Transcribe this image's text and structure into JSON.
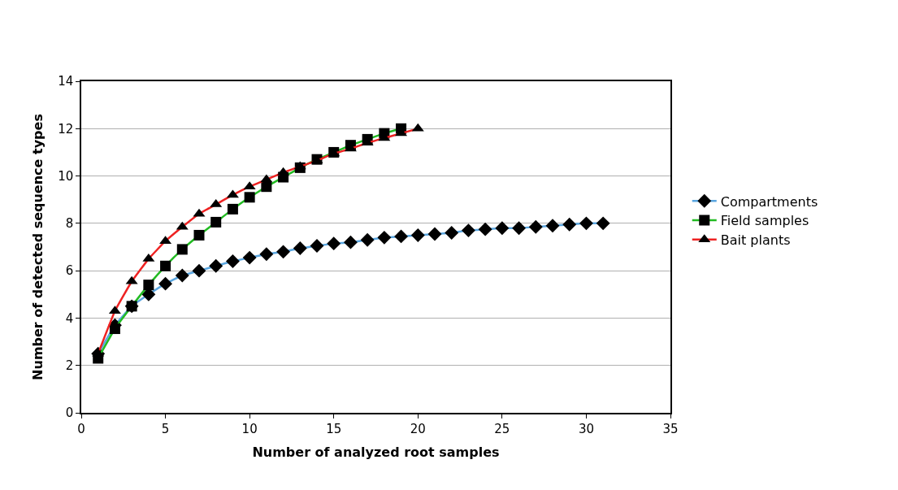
{
  "chart_data": {
    "type": "line",
    "xlabel": "Number of analyzed root samples",
    "ylabel": "Number of detected sequence types",
    "xlim": [
      0,
      35
    ],
    "xticks": [
      0,
      5,
      10,
      15,
      20,
      25,
      30,
      35
    ],
    "ylim": [
      0,
      14
    ],
    "yticks": [
      0,
      2,
      4,
      6,
      8,
      10,
      12,
      14
    ],
    "grid": "y",
    "legend": "right",
    "series": [
      {
        "name": "Compartments",
        "color": "#5aa6e0",
        "marker": "diamond",
        "x": [
          1,
          2,
          3,
          4,
          5,
          6,
          7,
          8,
          9,
          10,
          11,
          12,
          13,
          14,
          15,
          16,
          17,
          18,
          19,
          20,
          21,
          22,
          23,
          24,
          25,
          26,
          27,
          28,
          29,
          30,
          31
        ],
        "values": [
          2.5,
          3.7,
          4.5,
          5.0,
          5.45,
          5.8,
          6.0,
          6.2,
          6.4,
          6.55,
          6.7,
          6.8,
          6.95,
          7.05,
          7.15,
          7.2,
          7.3,
          7.4,
          7.45,
          7.5,
          7.55,
          7.6,
          7.7,
          7.75,
          7.8,
          7.8,
          7.85,
          7.9,
          7.95,
          8.0,
          8.0
        ]
      },
      {
        "name": "Field samples",
        "color": "#22bb22",
        "marker": "square",
        "x": [
          1,
          2,
          3,
          4,
          5,
          6,
          7,
          8,
          9,
          10,
          11,
          12,
          13,
          14,
          15,
          16,
          17,
          18,
          19
        ],
        "values": [
          2.3,
          3.55,
          4.5,
          5.4,
          6.2,
          6.9,
          7.5,
          8.05,
          8.6,
          9.1,
          9.55,
          9.95,
          10.35,
          10.7,
          11.0,
          11.3,
          11.55,
          11.8,
          12.0
        ]
      },
      {
        "name": "Bait plants",
        "color": "#ee2222",
        "marker": "triangle",
        "x": [
          1,
          2,
          3,
          4,
          5,
          6,
          7,
          8,
          9,
          10,
          11,
          12,
          13,
          14,
          15,
          16,
          17,
          18,
          19,
          20
        ],
        "values": [
          2.5,
          4.3,
          5.55,
          6.5,
          7.25,
          7.85,
          8.4,
          8.8,
          9.2,
          9.55,
          9.85,
          10.15,
          10.4,
          10.65,
          10.95,
          11.15,
          11.4,
          11.6,
          11.8,
          12.0
        ]
      }
    ]
  }
}
